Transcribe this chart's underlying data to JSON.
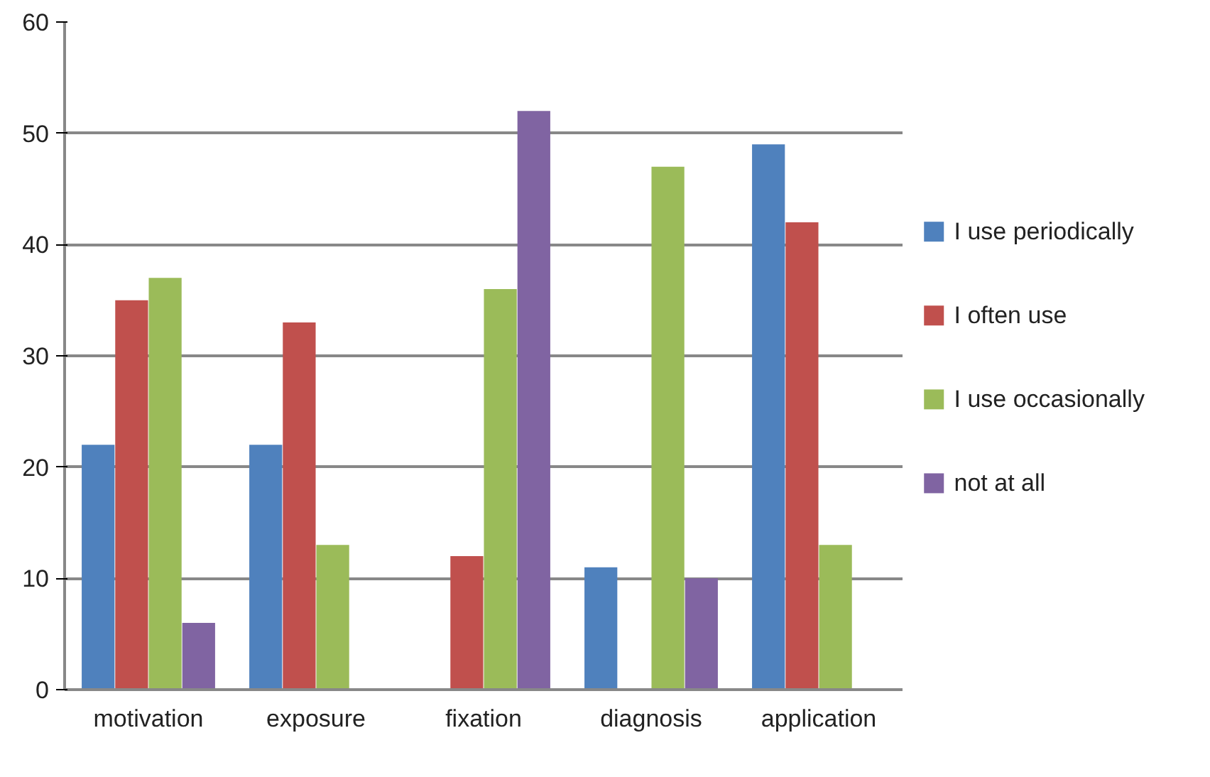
{
  "chart_data": {
    "type": "bar",
    "categories": [
      "motivation",
      "exposure",
      "fixation",
      "diagnosis",
      "application"
    ],
    "series": [
      {
        "name": "I use periodically",
        "color": "#4f81bd",
        "values": [
          22,
          22,
          null,
          11,
          49
        ]
      },
      {
        "name": "I often use",
        "color": "#c0504d",
        "values": [
          35,
          33,
          12,
          null,
          42
        ]
      },
      {
        "name": "I use occasionally",
        "color": "#9bbb59",
        "values": [
          37,
          13,
          36,
          47,
          13
        ]
      },
      {
        "name": "not at all",
        "color": "#8064a2",
        "values": [
          6,
          null,
          52,
          10,
          null
        ]
      }
    ],
    "ylim": [
      0,
      60
    ],
    "yticks": [
      0,
      10,
      20,
      30,
      40,
      50,
      60
    ],
    "grid": "y",
    "legend": "right"
  }
}
